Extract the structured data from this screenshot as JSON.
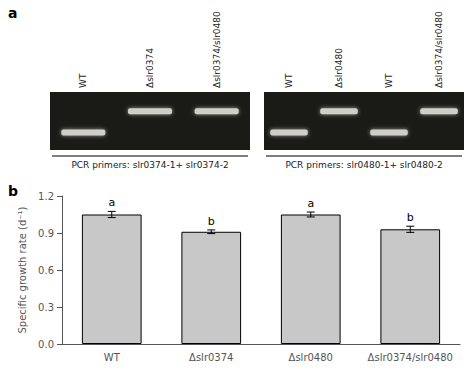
{
  "chart_data": {
    "type": "bar",
    "categories": [
      "WT",
      "Δslr0374",
      "Δslr0480",
      "Δslr0374/slr0480"
    ],
    "values": [
      1.05,
      0.91,
      1.05,
      0.93
    ],
    "errors": [
      0.025,
      0.015,
      0.02,
      0.025
    ],
    "color": "#c8c8c8",
    "edge_color": "#000000",
    "significance_labels": [
      "a",
      "b",
      "a",
      "b"
    ],
    "ylabel": "Specific growth rate (d⁻¹)",
    "ylim": [
      0.0,
      1.2
    ],
    "yticks": [
      {
        "value": 0.0,
        "label": "0.0"
      },
      0.3,
      0.6,
      0.9,
      1.2
    ],
    "grid": false,
    "panel_labels": [
      "a",
      "b"
    ],
    "gel_lanes_left": [
      "WT",
      "Δslr0374",
      "Δslr0374/slr0480"
    ],
    "gel_lanes_right": [
      "WT",
      "Δslr0480",
      "WT",
      "Δslr0374/slr0480"
    ],
    "gel_caption_left": "PCR primers: slr0374-1+ slr0374-2",
    "gel_caption_right": "PCR primers: slr0480-1+ slr0480-2"
  }
}
